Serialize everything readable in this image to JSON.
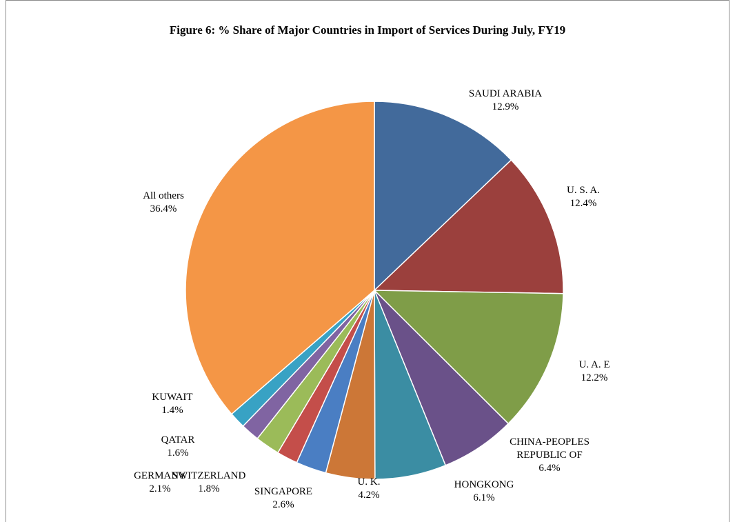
{
  "chart_data": {
    "type": "pie",
    "title": "Figure 6: % Share of Major Countries in Import of Services During July,  FY19",
    "slices": [
      {
        "label": "SAUDI ARABIA",
        "value": 12.9,
        "value_label": "12.9%",
        "color": "#426a9b"
      },
      {
        "label": "U. S. A.",
        "value": 12.4,
        "value_label": "12.4%",
        "color": "#9b403d"
      },
      {
        "label": "U. A. E",
        "value": 12.2,
        "value_label": "12.2%",
        "color": "#7f9d48"
      },
      {
        "label": "CHINA-PEOPLES REPUBLIC OF",
        "value": 6.4,
        "value_label": "6.4%",
        "color": "#6a5189"
      },
      {
        "label": "HONGKONG",
        "value": 6.1,
        "value_label": "6.1%",
        "color": "#3b8da3"
      },
      {
        "label": "U. K.",
        "value": 4.2,
        "value_label": "4.2%",
        "color": "#cc7737"
      },
      {
        "label": "SINGAPORE",
        "value": 2.6,
        "value_label": "2.6%",
        "color": "#4a7ec3"
      },
      {
        "label": "SWITZERLAND",
        "value": 1.8,
        "value_label": "1.8%",
        "color": "#c44e4a"
      },
      {
        "label": "GERMANY",
        "value": 2.1,
        "value_label": "2.1%",
        "color": "#9bbb59"
      },
      {
        "label": "QATAR",
        "value": 1.6,
        "value_label": "1.6%",
        "color": "#8064a2"
      },
      {
        "label": "KUWAIT",
        "value": 1.4,
        "value_label": "1.4%",
        "color": "#38a2c4"
      },
      {
        "label": "All others",
        "value": 36.4,
        "value_label": "36.4%",
        "color": "#f49646"
      }
    ]
  }
}
